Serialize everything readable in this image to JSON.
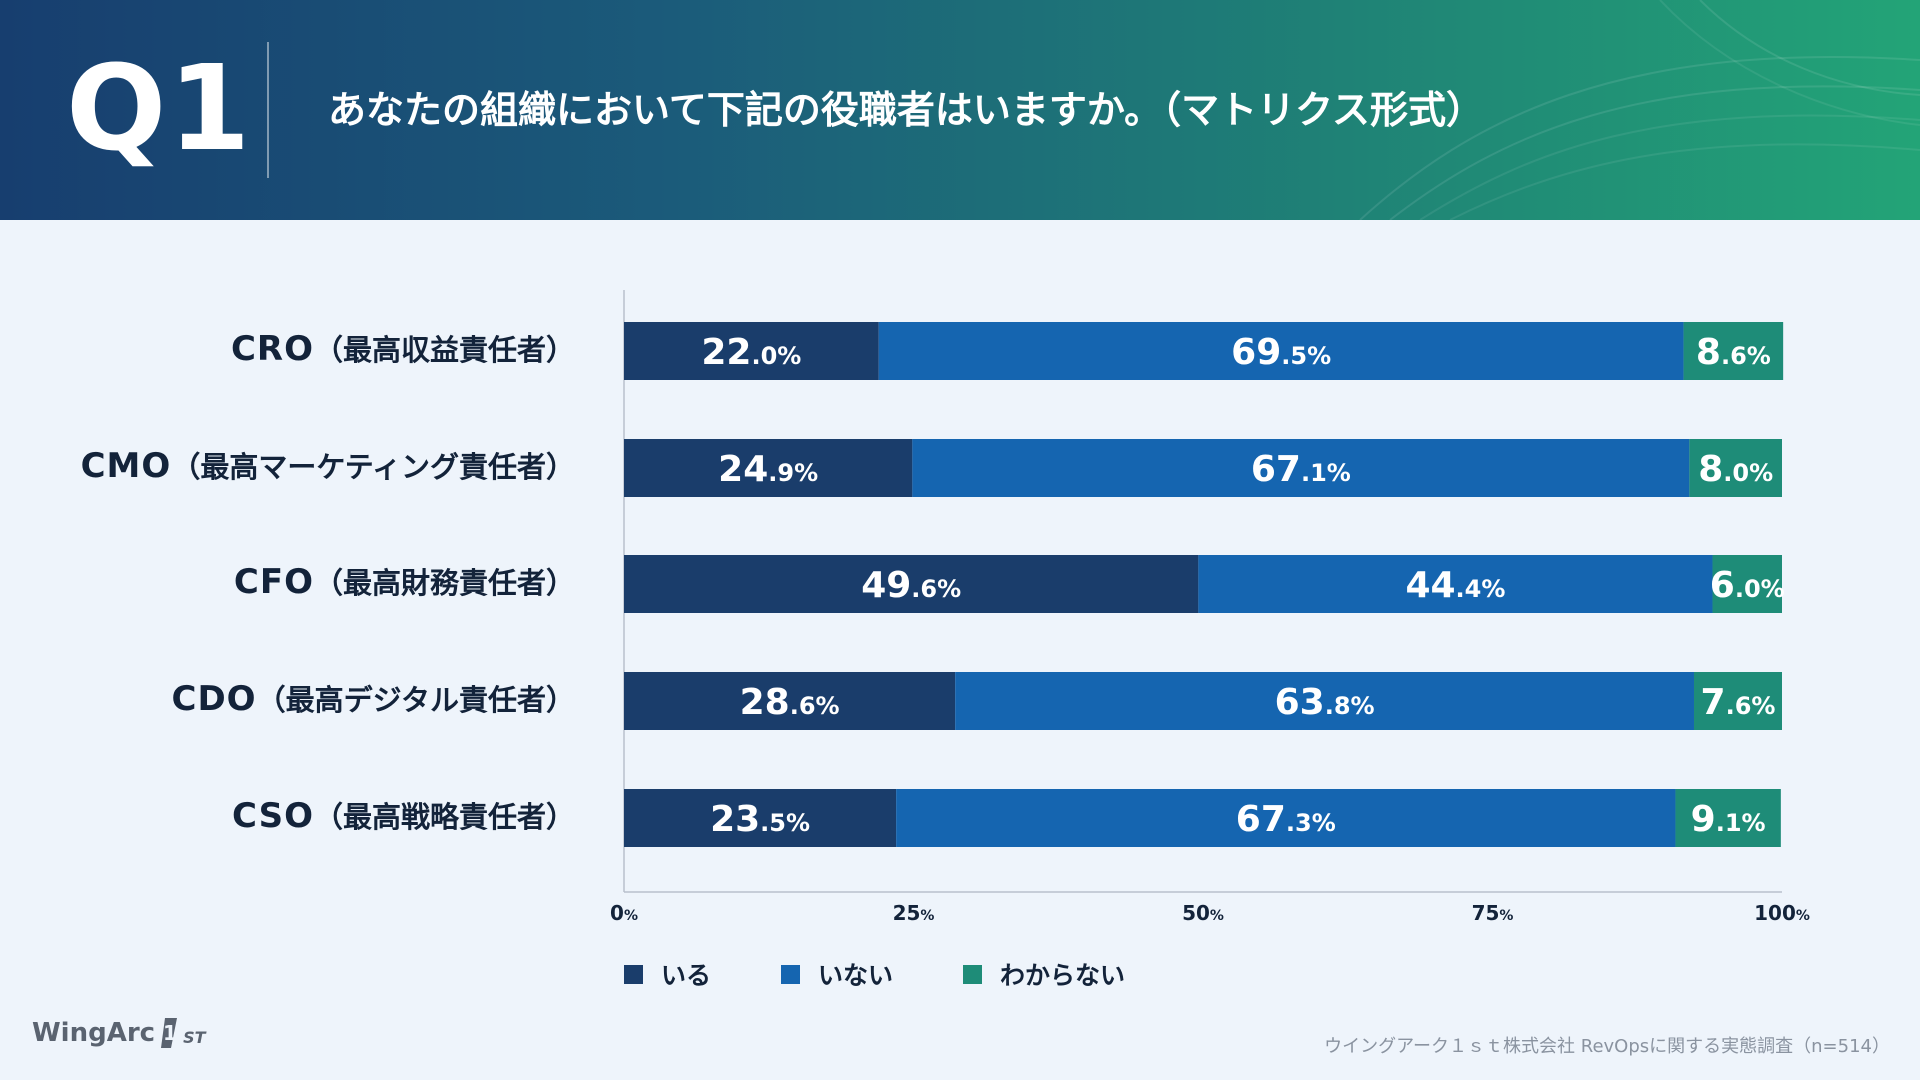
{
  "header": {
    "question_number": "Q1",
    "title": "あなたの組織において下記の役職者はいますか。（マトリクス形式）"
  },
  "colors": {
    "iru": "#1a3d6b",
    "inai": "#1565b0",
    "wakaranai": "#1e8c78",
    "axis": "#b8c0cc",
    "label_text": "#13233a"
  },
  "chart_data": {
    "type": "bar",
    "orientation": "horizontal",
    "stacked": true,
    "categories": [
      {
        "abbr": "CRO",
        "full": "（最高収益責任者）"
      },
      {
        "abbr": "CMO",
        "full": "（最高マーケティング責任者）"
      },
      {
        "abbr": "CFO",
        "full": "（最高財務責任者）"
      },
      {
        "abbr": "CDO",
        "full": "（最高デジタル責任者）"
      },
      {
        "abbr": "CSO",
        "full": "（最高戦略責任者）"
      }
    ],
    "series": [
      {
        "name": "いる",
        "values": [
          22.0,
          24.9,
          49.6,
          28.6,
          23.5
        ]
      },
      {
        "name": "いない",
        "values": [
          69.5,
          67.1,
          44.4,
          63.8,
          67.3
        ]
      },
      {
        "name": "わからない",
        "values": [
          8.6,
          8.0,
          6.0,
          7.6,
          9.1
        ]
      }
    ],
    "value_labels": [
      [
        "22.0%",
        "69.5%",
        "8.6%"
      ],
      [
        "24.9%",
        "67.1%",
        "8.0%"
      ],
      [
        "49.6%",
        "44.4%",
        "6.0%"
      ],
      [
        "28.6%",
        "63.8%",
        "7.6%"
      ],
      [
        "23.5%",
        "67.3%",
        "9.1%"
      ]
    ],
    "xlim": [
      0,
      100
    ],
    "xticks": [
      0,
      25,
      50,
      75,
      100
    ],
    "xtick_labels": [
      "0%",
      "25%",
      "50%",
      "75%",
      "100%"
    ],
    "legend_position": "bottom-left"
  },
  "legend": {
    "items": [
      "いる",
      "いない",
      "わからない"
    ]
  },
  "footer": {
    "logo_text": "WingArc",
    "logo_mark": "1",
    "logo_sub": "ST",
    "source": "ウイングアーク１ｓｔ株式会社 RevOpsに関する実態調査（n=514）"
  }
}
